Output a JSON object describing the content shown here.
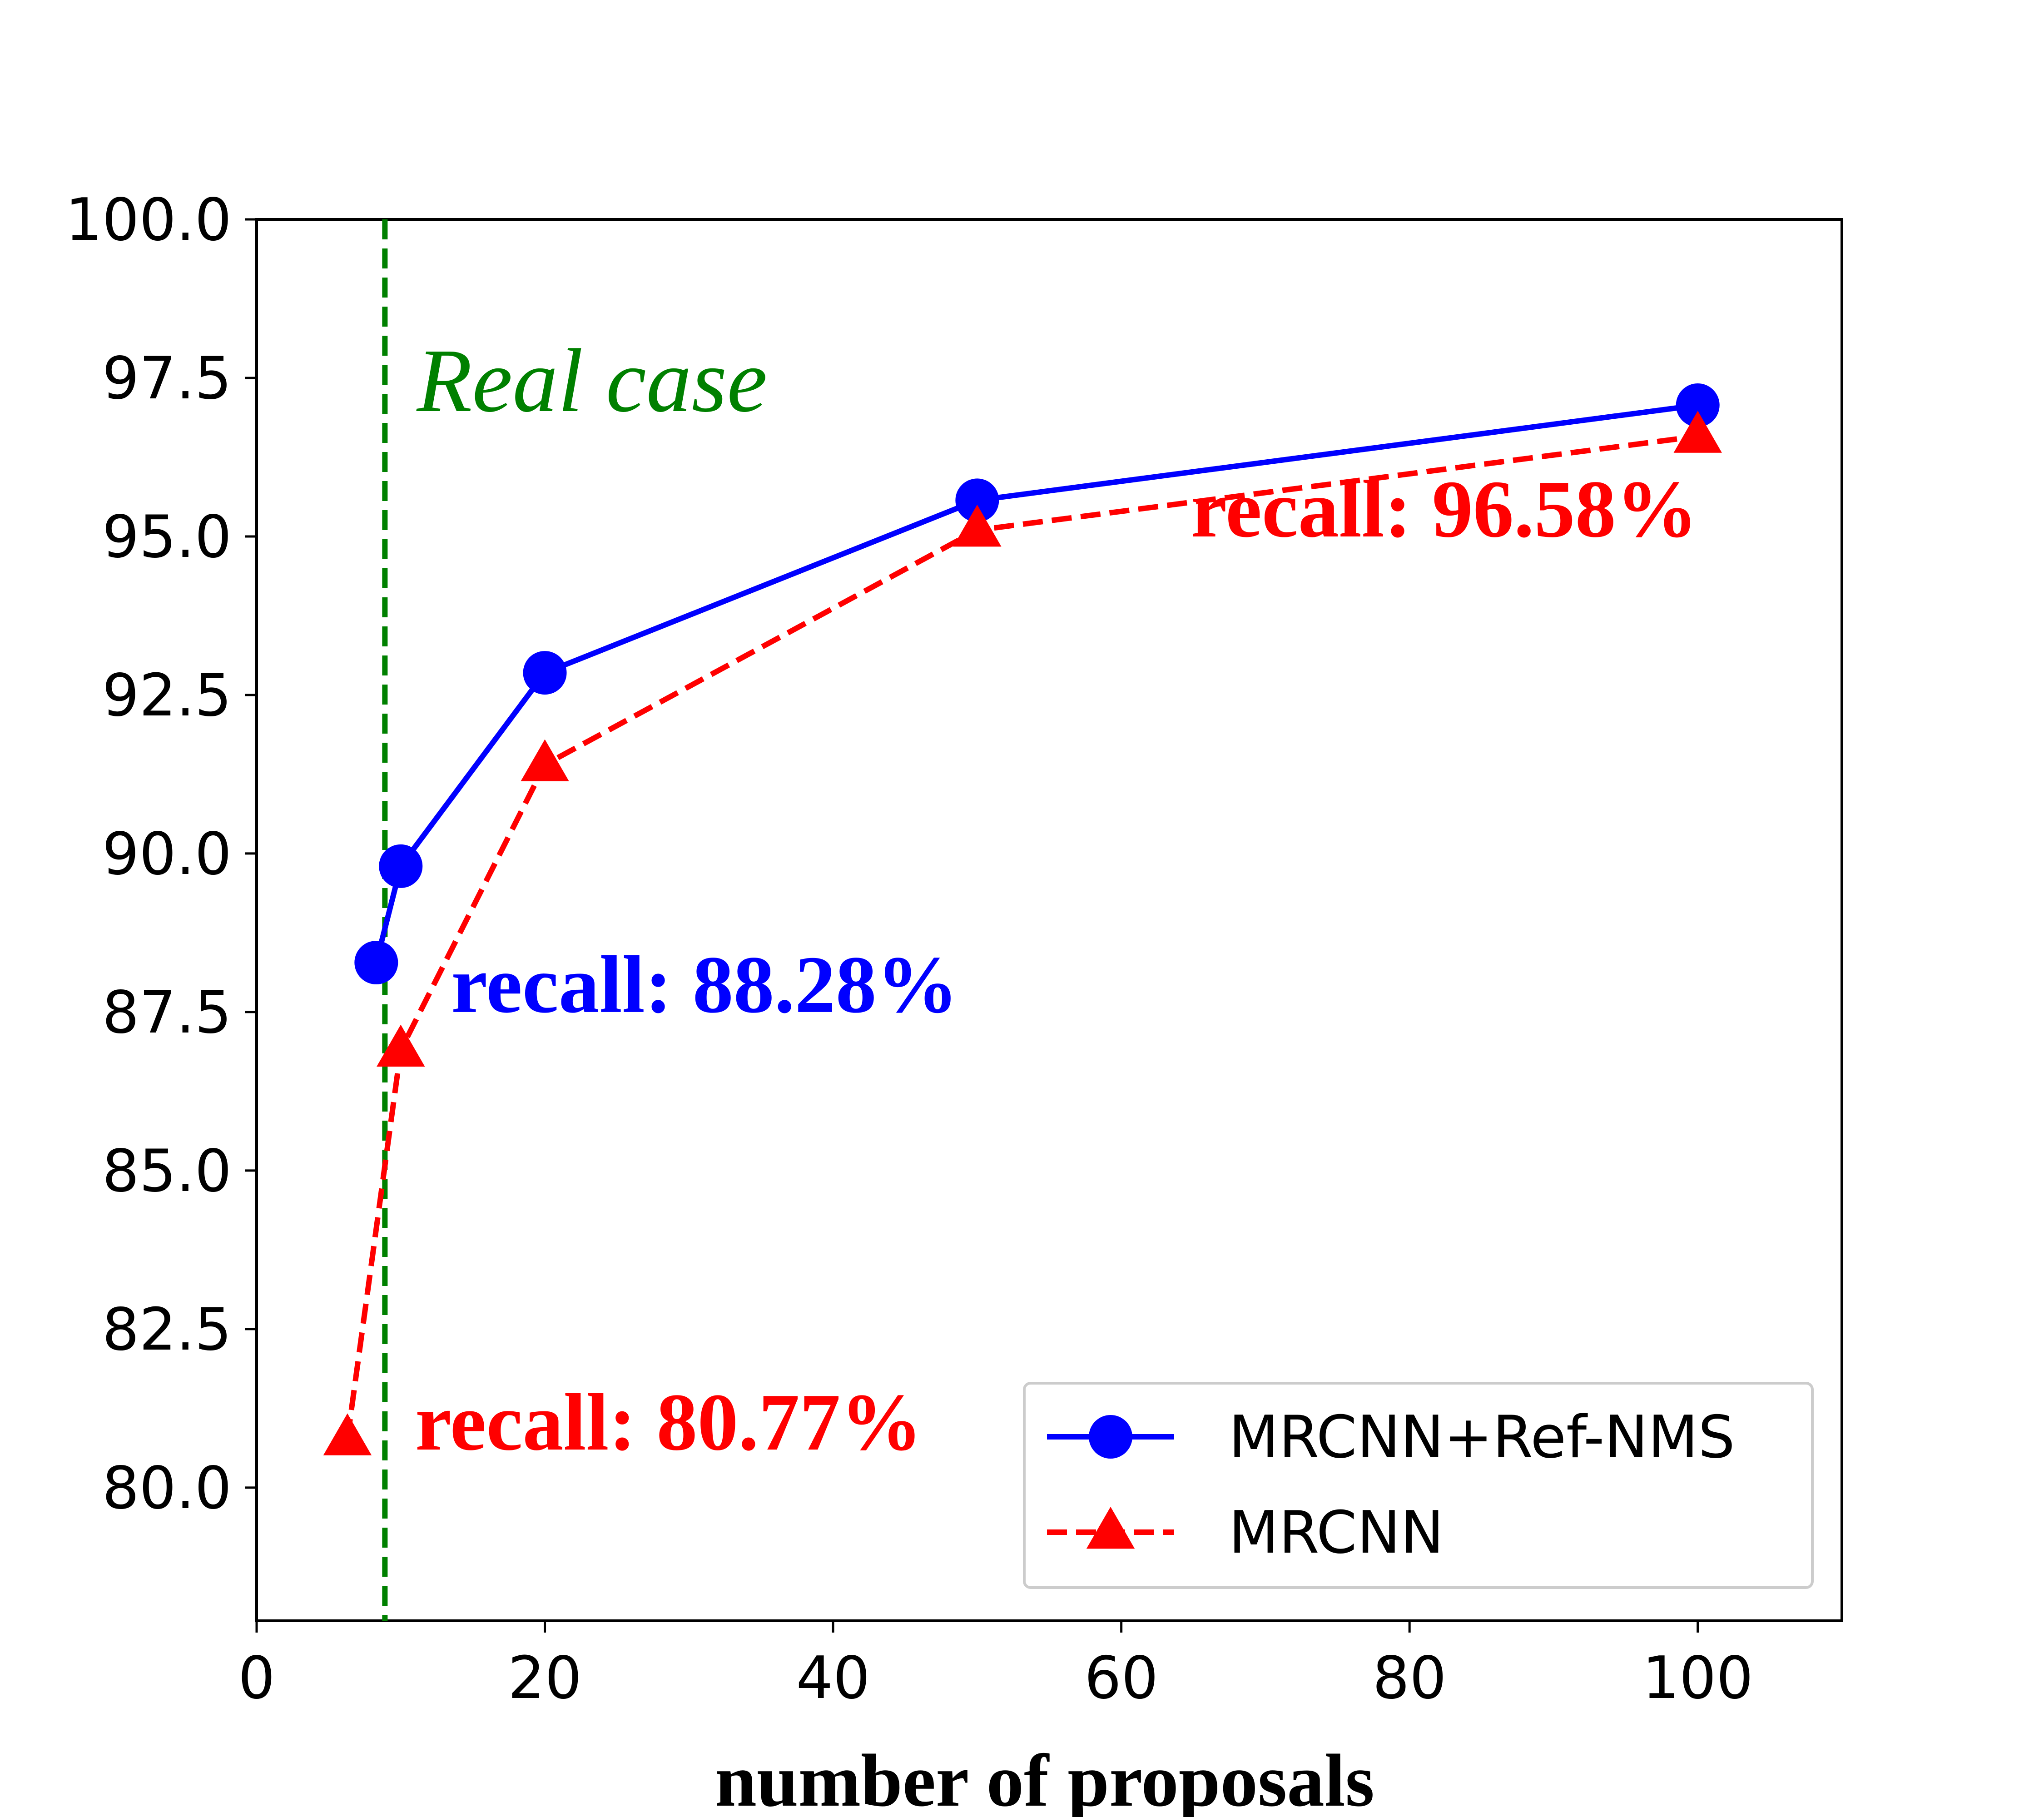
{
  "chart_data": {
    "type": "line",
    "xlabel": "number of proposals",
    "ylabel": "",
    "xlim": [
      0,
      110
    ],
    "ylim": [
      77.9,
      100.0
    ],
    "xticks": [
      0,
      20,
      40,
      60,
      80,
      100
    ],
    "yticks": [
      80.0,
      82.5,
      85.0,
      87.5,
      90.0,
      92.5,
      95.0,
      97.5,
      100.0
    ],
    "xtick_labels": [
      "0",
      "20",
      "40",
      "60",
      "80",
      "100"
    ],
    "ytick_labels": [
      "80.0",
      "82.5",
      "85.0",
      "87.5",
      "90.0",
      "92.5",
      "95.0",
      "97.5",
      "100.0"
    ],
    "series": [
      {
        "name": "MRCNN+Ref-NMS",
        "color": "#0000ff",
        "line_style": "solid",
        "marker": "circle",
        "x": [
          8.3,
          10,
          20,
          50,
          100
        ],
        "y": [
          88.28,
          89.8,
          92.85,
          95.57,
          97.07
        ]
      },
      {
        "name": "MRCNN",
        "color": "#ff0000",
        "line_style": "dashed",
        "marker": "triangle",
        "x": [
          6.3,
          10,
          20,
          50,
          100
        ],
        "y": [
          80.77,
          86.9,
          91.4,
          95.1,
          96.58
        ]
      }
    ],
    "vline": {
      "x": 8.9,
      "color": "#008000",
      "line_style": "dashed",
      "label": "Real case"
    },
    "annotations": [
      {
        "text": "recall: 96.58%",
        "x": 100,
        "y": 95.0,
        "color": "#ff0000",
        "anchor": "end"
      },
      {
        "text": "recall: 88.28%",
        "x": 13.5,
        "y": 87.5,
        "color": "#0000ff",
        "anchor": "start"
      },
      {
        "text": "recall: 80.77%",
        "x": 11,
        "y": 80.6,
        "color": "#ff0000",
        "anchor": "start"
      }
    ],
    "legend": {
      "placement": "lower-right",
      "entries": [
        "MRCNN+Ref-NMS",
        "MRCNN"
      ]
    },
    "grid": false
  }
}
